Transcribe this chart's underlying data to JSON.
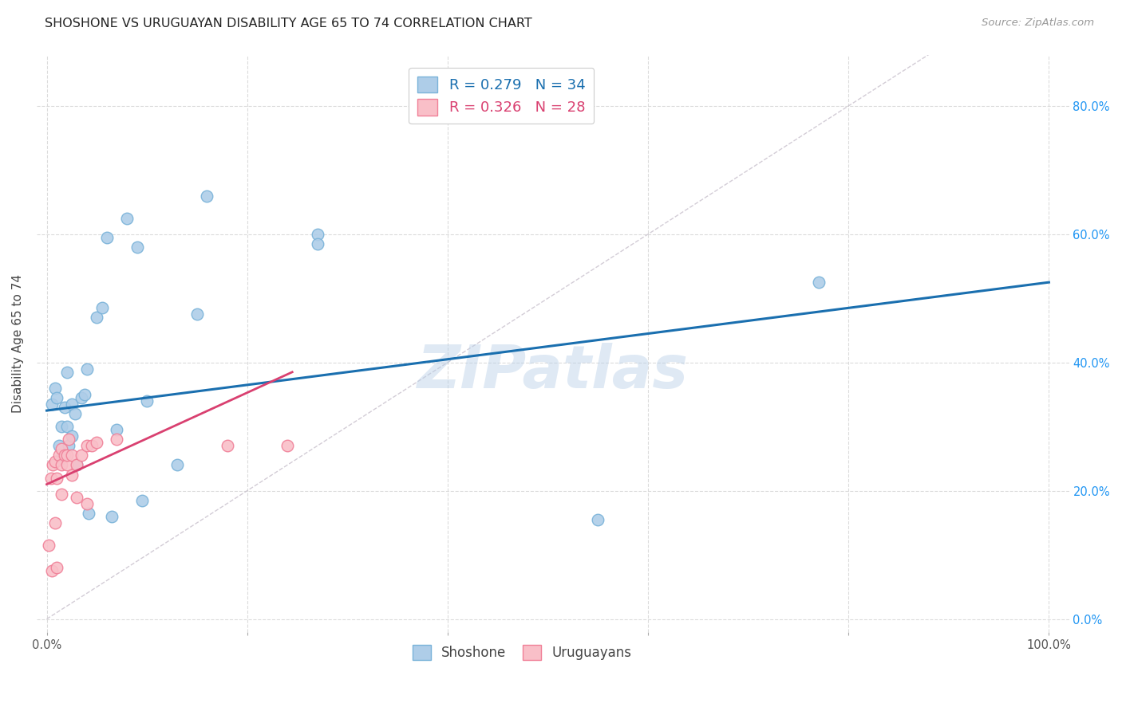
{
  "title": "SHOSHONE VS URUGUAYAN DISABILITY AGE 65 TO 74 CORRELATION CHART",
  "source": "Source: ZipAtlas.com",
  "ylabel": "Disability Age 65 to 74",
  "x_ticks": [
    0.0,
    0.2,
    0.4,
    0.6,
    0.8,
    1.0
  ],
  "x_tick_labels": [
    "0.0%",
    "",
    "",
    "",
    "",
    "100.0%"
  ],
  "y_ticks": [
    0.0,
    0.2,
    0.4,
    0.6,
    0.8
  ],
  "y_tick_labels_right": [
    "0.0%",
    "20.0%",
    "40.0%",
    "60.0%",
    "80.0%"
  ],
  "xlim": [
    -0.01,
    1.02
  ],
  "ylim": [
    -0.02,
    0.88
  ],
  "shoshone_fill_color": "#aecde8",
  "shoshone_edge_color": "#7ab3d9",
  "uruguayan_fill_color": "#f9bfc8",
  "uruguayan_edge_color": "#f08098",
  "shoshone_line_color": "#1a6faf",
  "uruguayan_line_color": "#d94070",
  "diagonal_color": "#c8c0cc",
  "R_shoshone": "0.279",
  "N_shoshone": "34",
  "R_uruguayan": "0.326",
  "N_uruguayan": "28",
  "legend_labels": [
    "Shoshone",
    "Uruguayans"
  ],
  "watermark": "ZIPatlas",
  "shoshone_x": [
    0.005,
    0.008,
    0.01,
    0.012,
    0.015,
    0.015,
    0.018,
    0.02,
    0.02,
    0.022,
    0.025,
    0.025,
    0.028,
    0.03,
    0.035,
    0.038,
    0.04,
    0.042,
    0.05,
    0.055,
    0.06,
    0.065,
    0.07,
    0.08,
    0.09,
    0.095,
    0.1,
    0.13,
    0.15,
    0.16,
    0.27,
    0.27,
    0.55,
    0.77
  ],
  "shoshone_y": [
    0.335,
    0.36,
    0.345,
    0.27,
    0.25,
    0.3,
    0.33,
    0.385,
    0.3,
    0.27,
    0.335,
    0.285,
    0.32,
    0.24,
    0.345,
    0.35,
    0.39,
    0.165,
    0.47,
    0.485,
    0.595,
    0.16,
    0.295,
    0.625,
    0.58,
    0.185,
    0.34,
    0.24,
    0.475,
    0.66,
    0.6,
    0.585,
    0.155,
    0.525
  ],
  "uruguayan_x": [
    0.002,
    0.004,
    0.005,
    0.006,
    0.008,
    0.008,
    0.01,
    0.01,
    0.012,
    0.015,
    0.015,
    0.015,
    0.018,
    0.02,
    0.02,
    0.022,
    0.025,
    0.025,
    0.03,
    0.03,
    0.035,
    0.04,
    0.04,
    0.045,
    0.05,
    0.07,
    0.18,
    0.24
  ],
  "uruguayan_y": [
    0.115,
    0.22,
    0.075,
    0.24,
    0.245,
    0.15,
    0.22,
    0.08,
    0.255,
    0.265,
    0.24,
    0.195,
    0.255,
    0.24,
    0.255,
    0.28,
    0.225,
    0.255,
    0.24,
    0.19,
    0.255,
    0.27,
    0.18,
    0.27,
    0.275,
    0.28,
    0.27,
    0.27
  ],
  "shoshone_line": {
    "x0": 0.0,
    "y0": 0.325,
    "x1": 1.0,
    "y1": 0.525
  },
  "uruguayan_line": {
    "x0": 0.0,
    "y0": 0.21,
    "x1": 0.245,
    "y1": 0.385
  },
  "grid_color": "#d8d8d8",
  "title_fontsize": 11.5,
  "tick_fontsize": 10.5,
  "ylabel_fontsize": 11
}
